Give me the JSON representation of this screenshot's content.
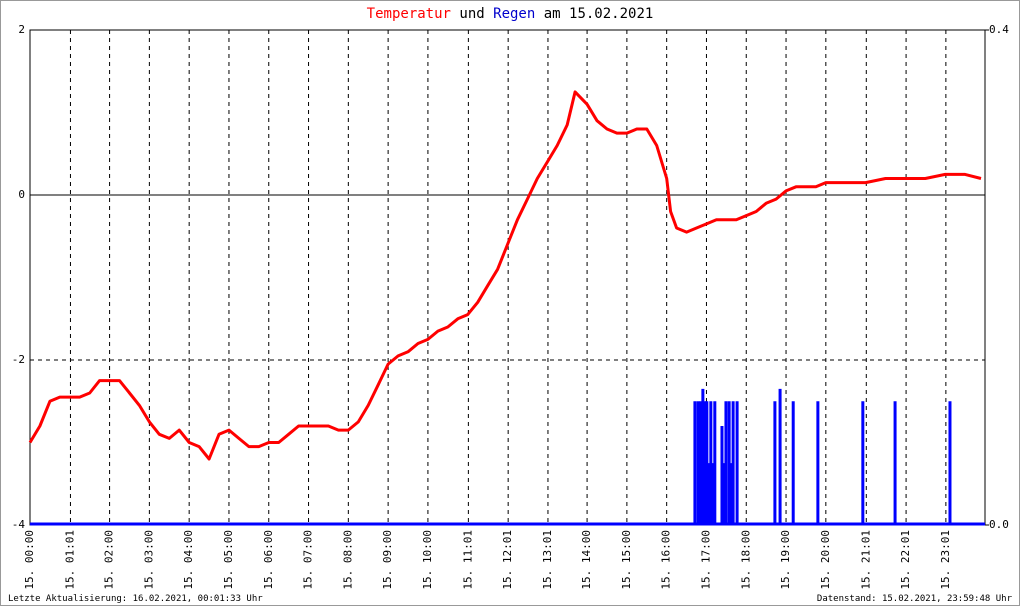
{
  "chart_data": {
    "type": "line",
    "title_words": [
      "und",
      "am 15.02.2021"
    ],
    "footer_left": "Letzte Aktualisierung: 16.02.2021, 00:01:33 Uhr",
    "footer_right": "Datenstand: 15.02.2021, 23:59:48 Uhr",
    "xlim": [
      0,
      24
    ],
    "xticks": [
      {
        "value": 0,
        "label": "15. 00:00"
      },
      {
        "value": 1.0167,
        "label": "15. 01:01"
      },
      {
        "value": 2,
        "label": "15. 02:00"
      },
      {
        "value": 3,
        "label": "15. 03:00"
      },
      {
        "value": 4,
        "label": "15. 04:00"
      },
      {
        "value": 5,
        "label": "15. 05:00"
      },
      {
        "value": 6,
        "label": "15. 06:00"
      },
      {
        "value": 7,
        "label": "15. 07:00"
      },
      {
        "value": 8,
        "label": "15. 08:00"
      },
      {
        "value": 9,
        "label": "15. 09:00"
      },
      {
        "value": 10,
        "label": "15. 10:00"
      },
      {
        "value": 11.0167,
        "label": "15. 11:01"
      },
      {
        "value": 12.0167,
        "label": "15. 12:01"
      },
      {
        "value": 13.0167,
        "label": "15. 13:01"
      },
      {
        "value": 14,
        "label": "15. 14:00"
      },
      {
        "value": 15,
        "label": "15. 15:00"
      },
      {
        "value": 16,
        "label": "15. 16:00"
      },
      {
        "value": 17,
        "label": "15. 17:00"
      },
      {
        "value": 18,
        "label": "15. 18:00"
      },
      {
        "value": 19,
        "label": "15. 19:00"
      },
      {
        "value": 20,
        "label": "15. 20:00"
      },
      {
        "value": 21.0167,
        "label": "15. 21:01"
      },
      {
        "value": 22.0167,
        "label": "15. 22:01"
      },
      {
        "value": 23.0167,
        "label": "15. 23:01"
      }
    ],
    "ylim": [
      -4,
      2
    ],
    "yticks": [
      -4,
      -2,
      0,
      2
    ],
    "y2lim": [
      0,
      0.4
    ],
    "y2ticks": [
      {
        "value": 0,
        "label": "0.0"
      },
      {
        "value": 0.4,
        "label": "0.4"
      }
    ],
    "grid": true,
    "series": [
      {
        "name": "Temperatur",
        "color": "#ff0000",
        "kind": "line",
        "x": [
          0,
          0.25,
          0.5,
          0.75,
          1,
          1.25,
          1.5,
          1.75,
          2,
          2.25,
          2.5,
          2.75,
          3,
          3.25,
          3.5,
          3.75,
          4,
          4.25,
          4.5,
          4.75,
          5,
          5.25,
          5.5,
          5.75,
          6,
          6.25,
          6.5,
          6.75,
          7,
          7.25,
          7.5,
          7.75,
          8,
          8.25,
          8.5,
          8.75,
          9,
          9.25,
          9.5,
          9.75,
          10,
          10.25,
          10.5,
          10.75,
          11,
          11.25,
          11.5,
          11.75,
          12,
          12.25,
          12.5,
          12.75,
          13,
          13.25,
          13.5,
          13.7,
          14,
          14.25,
          14.5,
          14.75,
          15,
          15.25,
          15.5,
          15.75,
          16,
          16.1,
          16.25,
          16.5,
          16.75,
          17,
          17.25,
          17.5,
          17.75,
          18,
          18.25,
          18.5,
          18.75,
          19,
          19.25,
          19.5,
          19.75,
          20,
          20.5,
          21,
          21.5,
          22,
          22.5,
          23,
          23.5,
          23.9
        ],
        "values": [
          -3.0,
          -2.8,
          -2.5,
          -2.45,
          -2.45,
          -2.45,
          -2.4,
          -2.25,
          -2.25,
          -2.25,
          -2.4,
          -2.55,
          -2.75,
          -2.9,
          -2.95,
          -2.85,
          -3.0,
          -3.05,
          -3.2,
          -2.9,
          -2.85,
          -2.95,
          -3.05,
          -3.05,
          -3.0,
          -3.0,
          -2.9,
          -2.8,
          -2.8,
          -2.8,
          -2.8,
          -2.85,
          -2.85,
          -2.75,
          -2.55,
          -2.3,
          -2.05,
          -1.95,
          -1.9,
          -1.8,
          -1.75,
          -1.65,
          -1.6,
          -1.5,
          -1.45,
          -1.3,
          -1.1,
          -0.9,
          -0.6,
          -0.3,
          -0.05,
          0.2,
          0.4,
          0.6,
          0.85,
          1.25,
          1.1,
          0.9,
          0.8,
          0.75,
          0.75,
          0.8,
          0.8,
          0.6,
          0.2,
          -0.2,
          -0.4,
          -0.45,
          -0.4,
          -0.35,
          -0.3,
          -0.3,
          -0.3,
          -0.25,
          -0.2,
          -0.1,
          -0.05,
          0.05,
          0.1,
          0.1,
          0.1,
          0.15,
          0.15,
          0.15,
          0.2,
          0.2,
          0.2,
          0.25,
          0.25,
          0.2
        ]
      },
      {
        "name": "Regen",
        "color": "#0000ff",
        "kind": "bar",
        "axis": "y2",
        "x": [
          16.71,
          16.79,
          16.86,
          16.91,
          16.96,
          17.01,
          17.06,
          17.11,
          17.16,
          17.21,
          17.39,
          17.44,
          17.49,
          17.57,
          17.62,
          17.67,
          17.77,
          18.72,
          18.85,
          19.18,
          19.8,
          20.93,
          21.74,
          23.12
        ],
        "values": [
          0.1,
          0.1,
          0.1,
          0.11,
          0.1,
          0.1,
          0.05,
          0.1,
          0.05,
          0.1,
          0.08,
          0.05,
          0.1,
          0.1,
          0.05,
          0.1,
          0.1,
          0.1,
          0.11,
          0.1,
          0.1,
          0.1,
          0.1,
          0.1
        ]
      }
    ]
  }
}
